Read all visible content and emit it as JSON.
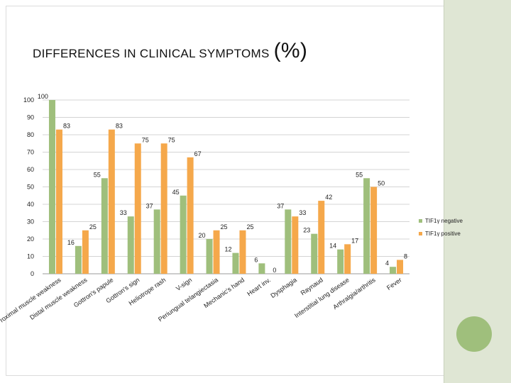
{
  "title": "DIFFERENCES IN CLINICAL SYMPTOMS",
  "title_suffix": "(%)",
  "colors": {
    "negative": "#9fbf7c",
    "positive": "#f5a84b",
    "grid": "#d4d4d4",
    "axis": "#9a9a9a"
  },
  "chart_data": {
    "type": "bar",
    "title": "DIFFERENCES IN CLINICAL SYMPTOMS (%)",
    "xlabel": "",
    "ylabel": "",
    "ylim": [
      0,
      100
    ],
    "yticks": [
      0,
      10,
      20,
      30,
      40,
      50,
      60,
      70,
      80,
      90,
      100
    ],
    "categories": [
      "Proximal muscle weakness",
      "Distal muscle weakness",
      "Gottron's papule",
      "Gottron's sign",
      "Heliotrope rash",
      "V-sign",
      "Periungual telangiectasia",
      "Mechanic's hand",
      "Heart inv.",
      "Dysphagia",
      "Raynaud",
      "Interstitial lung disease",
      "Arthralgia/arthritis",
      "Fever"
    ],
    "series": [
      {
        "name": "TIF1γ negative",
        "values": [
          100,
          16,
          55,
          33,
          37,
          45,
          20,
          12,
          6,
          37,
          23,
          14,
          55,
          4
        ]
      },
      {
        "name": "TIF1γ positive",
        "values": [
          83,
          25,
          83,
          75,
          75,
          67,
          25,
          25,
          0,
          33,
          42,
          17,
          50,
          8
        ]
      }
    ],
    "legend": "right"
  }
}
